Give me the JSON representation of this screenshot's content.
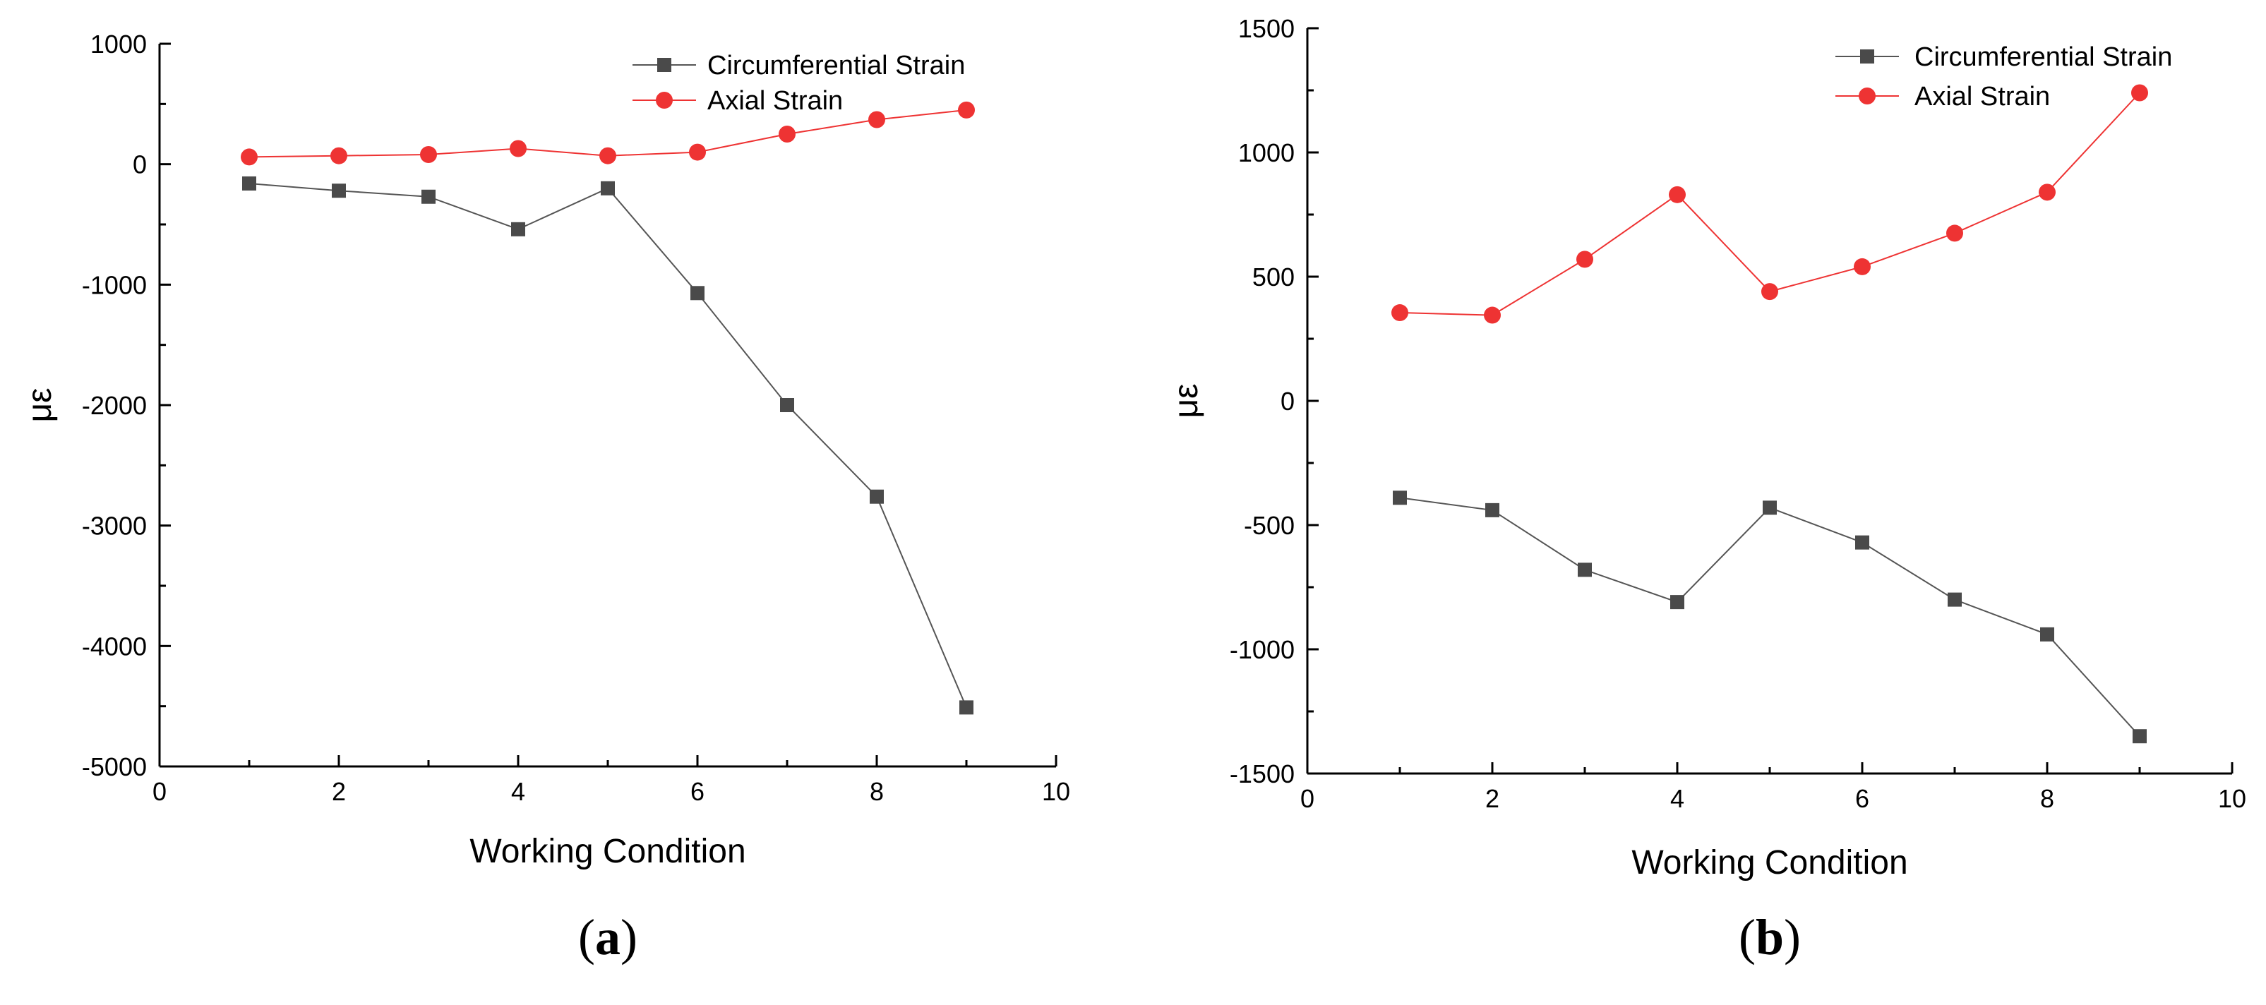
{
  "chart_data": [
    {
      "type": "line",
      "panel_label": "a",
      "xlabel": "Working Condition",
      "ylabel": "με",
      "xlim": [
        0,
        10
      ],
      "ylim": [
        -5000,
        1000
      ],
      "x_ticks": [
        0,
        2,
        4,
        6,
        8,
        10
      ],
      "y_ticks": [
        -5000,
        -4000,
        -3000,
        -2000,
        -1000,
        0,
        1000
      ],
      "grid": false,
      "legend_position": "top-right",
      "x": [
        1,
        2,
        3,
        4,
        5,
        6,
        7,
        8,
        9
      ],
      "series": [
        {
          "name": "Circumferential Strain",
          "marker": "square",
          "color": "#4a4a4a",
          "values": [
            -160,
            -220,
            -270,
            -540,
            -200,
            -1070,
            -2000,
            -2760,
            -4510
          ]
        },
        {
          "name": "Axial Strain",
          "marker": "circle",
          "color": "#ee3333",
          "values": [
            60,
            70,
            80,
            130,
            70,
            100,
            250,
            370,
            450
          ]
        }
      ]
    },
    {
      "type": "line",
      "panel_label": "b",
      "xlabel": "Working Condition",
      "ylabel": "με",
      "xlim": [
        0,
        10
      ],
      "ylim": [
        -1500,
        1500
      ],
      "x_ticks": [
        0,
        2,
        4,
        6,
        8,
        10
      ],
      "y_ticks": [
        -1500,
        -1000,
        -500,
        0,
        500,
        1000,
        1500
      ],
      "grid": false,
      "legend_position": "top-right",
      "x": [
        1,
        2,
        3,
        4,
        5,
        6,
        7,
        8,
        9
      ],
      "series": [
        {
          "name": "Circumferential Strain",
          "marker": "square",
          "color": "#4a4a4a",
          "values": [
            -390,
            -440,
            -680,
            -810,
            -430,
            -570,
            -800,
            -940,
            -1350
          ]
        },
        {
          "name": "Axial Strain",
          "marker": "circle",
          "color": "#ee3333",
          "values": [
            355,
            345,
            570,
            830,
            440,
            540,
            675,
            840,
            1240
          ]
        }
      ]
    }
  ]
}
